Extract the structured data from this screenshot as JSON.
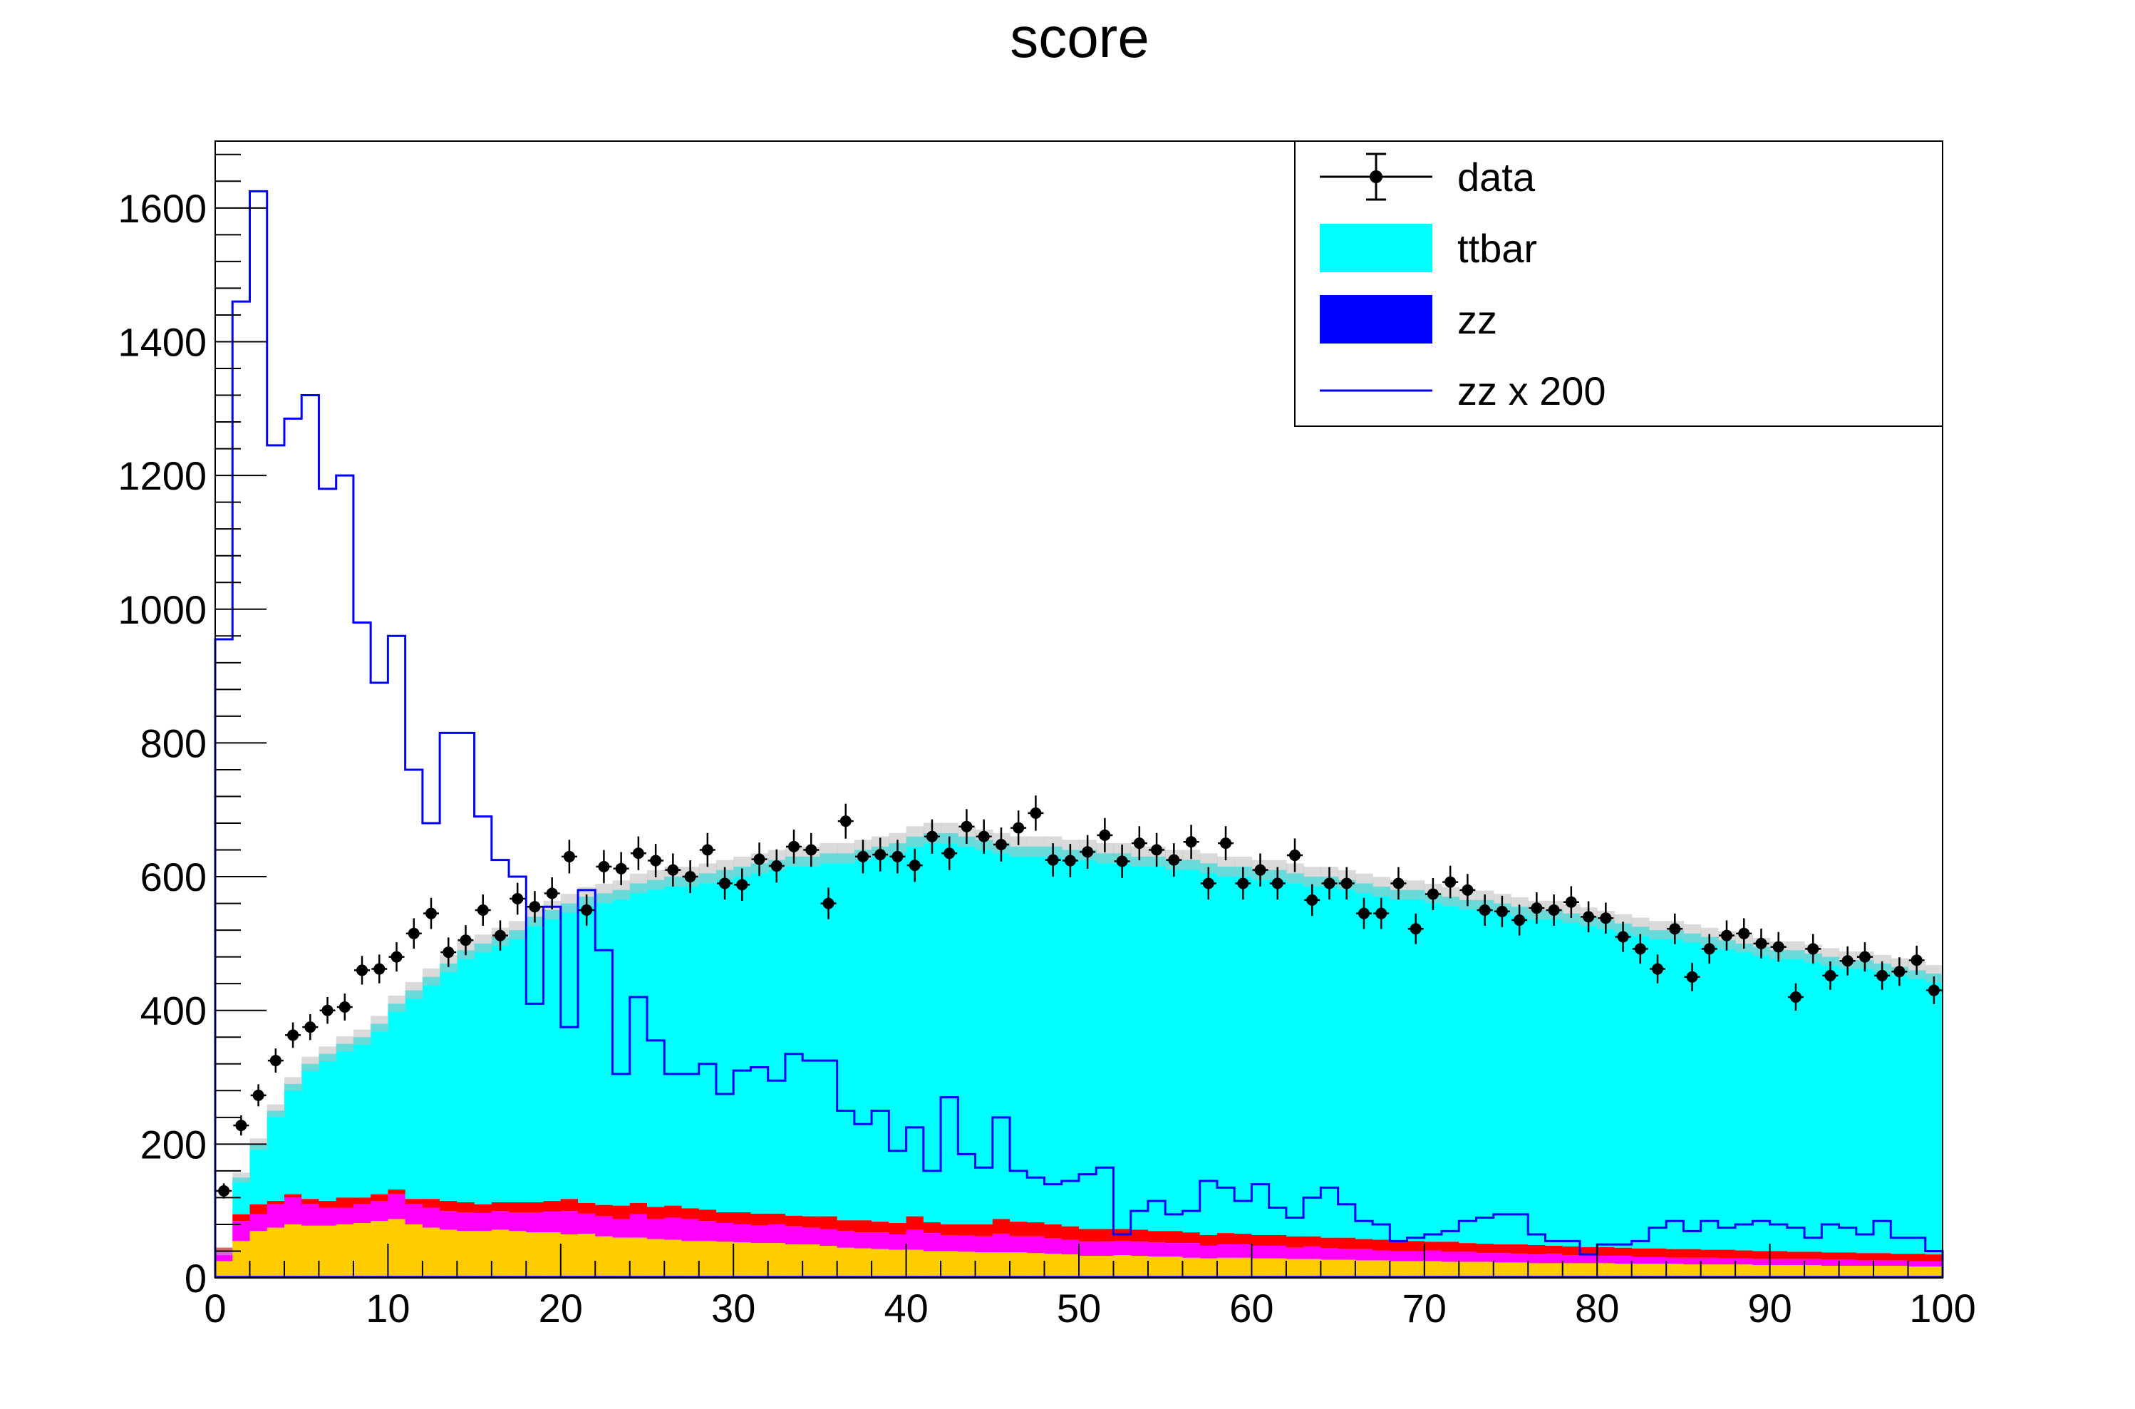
{
  "chart_data": {
    "type": "bar",
    "title": "score",
    "xlabel": "",
    "ylabel": "",
    "xlim": [
      0,
      100
    ],
    "ylim": [
      0,
      1700
    ],
    "x_ticks": [
      "0",
      "10",
      "20",
      "30",
      "40",
      "50",
      "60",
      "70",
      "80",
      "90",
      "100"
    ],
    "y_ticks": [
      "0",
      "200",
      "400",
      "600",
      "800",
      "1000",
      "1200",
      "1400",
      "1600"
    ],
    "bins": 100,
    "legend_position": "top-right",
    "legend": [
      {
        "label": "data",
        "kind": "marker",
        "color": "#000000"
      },
      {
        "label": "ttbar",
        "kind": "fill",
        "color": "#00ffff"
      },
      {
        "label": "zz",
        "kind": "fill",
        "color": "#0000ff"
      },
      {
        "label": "zz x 200",
        "kind": "line",
        "color": "#0000ff"
      }
    ],
    "stack_colors": {
      "zz": "#0000ff",
      "yellow": "#ffcc00",
      "magenta": "#ff00ff",
      "red": "#ff0000",
      "ttbar": "#00ffff",
      "uncertainty": "#bbbbbb"
    },
    "stack_total": [
      40,
      150,
      200,
      250,
      290,
      320,
      335,
      350,
      360,
      380,
      410,
      430,
      450,
      470,
      490,
      500,
      510,
      520,
      540,
      550,
      560,
      570,
      575,
      580,
      590,
      595,
      600,
      600,
      605,
      610,
      615,
      620,
      625,
      630,
      630,
      635,
      635,
      640,
      645,
      650,
      660,
      665,
      665,
      660,
      655,
      650,
      645,
      645,
      645,
      640,
      640,
      635,
      635,
      630,
      630,
      625,
      625,
      620,
      615,
      615,
      610,
      610,
      605,
      600,
      600,
      595,
      590,
      585,
      580,
      580,
      575,
      570,
      565,
      565,
      560,
      555,
      550,
      550,
      545,
      540,
      535,
      530,
      525,
      520,
      520,
      515,
      510,
      505,
      500,
      495,
      490,
      490,
      485,
      480,
      475,
      475,
      470,
      465,
      460,
      455
    ],
    "yellow_top": [
      25,
      55,
      70,
      75,
      80,
      78,
      78,
      80,
      82,
      85,
      88,
      80,
      75,
      72,
      70,
      70,
      72,
      70,
      68,
      68,
      65,
      66,
      62,
      60,
      60,
      58,
      57,
      55,
      55,
      54,
      53,
      52,
      52,
      50,
      50,
      48,
      45,
      44,
      43,
      42,
      42,
      40,
      40,
      39,
      38,
      38,
      38,
      37,
      36,
      35,
      33,
      33,
      34,
      33,
      32,
      32,
      30,
      29,
      30,
      30,
      29,
      29,
      28,
      28,
      27,
      27,
      26,
      26,
      25,
      25,
      25,
      24,
      24,
      24,
      23,
      23,
      22,
      22,
      22,
      22,
      22,
      21,
      21,
      21,
      21,
      20,
      20,
      20,
      20,
      19,
      19,
      19,
      19,
      18,
      18,
      18,
      18,
      18,
      17,
      17
    ],
    "magenta_top": [
      40,
      85,
      95,
      110,
      120,
      110,
      105,
      105,
      110,
      115,
      125,
      110,
      105,
      100,
      98,
      97,
      100,
      98,
      98,
      99,
      100,
      96,
      92,
      88,
      95,
      88,
      90,
      88,
      85,
      82,
      80,
      78,
      80,
      77,
      75,
      73,
      70,
      68,
      68,
      65,
      72,
      67,
      64,
      63,
      62,
      66,
      62,
      62,
      59,
      57,
      54,
      54,
      55,
      54,
      53,
      52,
      52,
      48,
      50,
      50,
      48,
      48,
      45,
      47,
      44,
      43,
      43,
      41,
      40,
      40,
      41,
      39,
      39,
      37,
      37,
      36,
      35,
      36,
      34,
      34,
      33,
      33,
      31,
      31,
      30,
      30,
      30,
      29,
      29,
      28,
      28,
      28,
      28,
      27,
      27,
      26,
      26,
      26,
      25,
      25
    ],
    "red_top": [
      45,
      95,
      110,
      115,
      125,
      118,
      115,
      120,
      120,
      125,
      132,
      118,
      118,
      115,
      113,
      110,
      113,
      113,
      113,
      115,
      118,
      112,
      109,
      108,
      112,
      106,
      108,
      104,
      102,
      98,
      98,
      96,
      96,
      93,
      92,
      92,
      86,
      86,
      84,
      82,
      92,
      83,
      80,
      80,
      80,
      88,
      84,
      83,
      80,
      77,
      73,
      73,
      73,
      72,
      70,
      70,
      68,
      64,
      67,
      66,
      64,
      64,
      62,
      62,
      60,
      60,
      58,
      57,
      56,
      55,
      54,
      54,
      52,
      51,
      50,
      50,
      49,
      48,
      47,
      46,
      46,
      45,
      44,
      44,
      43,
      43,
      42,
      42,
      41,
      40,
      40,
      39,
      39,
      38,
      38,
      37,
      37,
      36,
      36,
      35
    ],
    "zz_x200": [
      955,
      1460,
      1625,
      1245,
      1285,
      1320,
      1180,
      1200,
      980,
      890,
      960,
      760,
      680,
      815,
      815,
      690,
      625,
      600,
      410,
      555,
      375,
      580,
      490,
      305,
      420,
      355,
      305,
      305,
      320,
      275,
      310,
      315,
      295,
      335,
      325,
      325,
      250,
      230,
      250,
      190,
      225,
      160,
      270,
      185,
      165,
      240,
      160,
      150,
      140,
      145,
      155,
      165,
      65,
      100,
      115,
      95,
      100,
      145,
      135,
      115,
      140,
      105,
      90,
      120,
      135,
      110,
      85,
      80,
      55,
      60,
      65,
      70,
      85,
      90,
      95,
      95,
      65,
      55,
      55,
      35,
      50,
      50,
      55,
      75,
      85,
      70,
      85,
      75,
      80,
      85,
      80,
      75,
      60,
      80,
      75,
      65,
      85,
      60,
      60,
      40
    ],
    "data": [
      130,
      228,
      273,
      325,
      363,
      375,
      400,
      405,
      460,
      462,
      480,
      515,
      545,
      487,
      505,
      550,
      512,
      567,
      555,
      575,
      630,
      550,
      615,
      612,
      635,
      624,
      610,
      600,
      640,
      590,
      588,
      626,
      616,
      645,
      640,
      560,
      683,
      630,
      633,
      630,
      617,
      660,
      635,
      675,
      660,
      648,
      673,
      695,
      625,
      624,
      637,
      662,
      623,
      650,
      640,
      625,
      652,
      590,
      650,
      590,
      610,
      590,
      632,
      565,
      590,
      590,
      545,
      545,
      590,
      522,
      574,
      592,
      580,
      550,
      548,
      535,
      553,
      550,
      562,
      540,
      538,
      510,
      492,
      462,
      522,
      450,
      492,
      512,
      515,
      500,
      495,
      420,
      492,
      452,
      474,
      480,
      452,
      458,
      475,
      430
    ]
  }
}
